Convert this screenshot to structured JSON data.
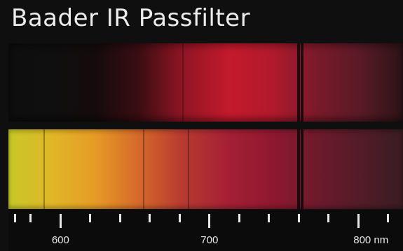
{
  "title": "Baader IR Passfilter",
  "scale": {
    "labels": [
      {
        "value": 600,
        "text": "600"
      },
      {
        "value": 700,
        "text": "700"
      },
      {
        "value": 800,
        "text": "800 nm"
      }
    ],
    "range_nm": [
      565,
      830
    ],
    "major_ticks_nm": [
      600,
      700,
      800
    ],
    "minor_tick_step_nm": 20
  },
  "spectra": [
    {
      "name": "filtered-spectrum",
      "colors": [
        "#0e0e0e",
        "#0f0f0f",
        "#150b0c",
        "#3a0d12",
        "#8f1524",
        "#c41a2c",
        "#b01a2c",
        "#7a1a2a",
        "#5a1a26",
        "#2c1416"
      ],
      "absorption_lines_nm": [
        682,
        760,
        762
      ]
    },
    {
      "name": "unfiltered-spectrum",
      "colors": [
        "#c7c828",
        "#e0b727",
        "#e69b25",
        "#d5692a",
        "#b83a30",
        "#a41f34",
        "#8e1830",
        "#6e1a2c",
        "#531c28",
        "#3a1c22"
      ],
      "absorption_lines_nm": [
        589,
        656,
        686,
        760,
        762
      ]
    }
  ]
}
